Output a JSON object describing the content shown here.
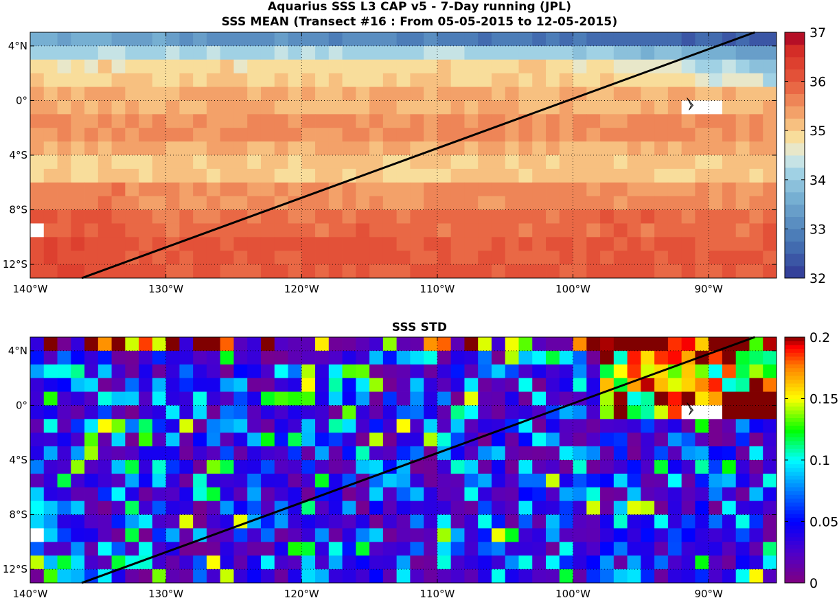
{
  "title_line1": "Aquarius SSS L3 CAP v5 - 7-Day running (JPL)",
  "title_line2": "SSS MEAN (Transect #16 : From 05-05-2015 to 12-05-2015)",
  "title_bottom": "SSS STD",
  "chart_data": [
    {
      "type": "heatmap",
      "title": "SSS MEAN (Transect #16 : From 05-05-2015 to 12-05-2015)",
      "xlim": [
        -140,
        -85
      ],
      "ylim": [
        -13,
        5
      ],
      "x_ticks": [
        -140,
        -130,
        -120,
        -110,
        -100,
        -90
      ],
      "x_tick_labels": [
        "140°W",
        "130°W",
        "120°W",
        "110°W",
        "100°W",
        "90°W"
      ],
      "y_ticks": [
        4,
        0,
        -4,
        -8,
        -12
      ],
      "y_tick_labels": [
        "4°N",
        "0°",
        "4°S",
        "8°S",
        "12°S"
      ],
      "grid": true,
      "colorbar": {
        "range": [
          32,
          37
        ],
        "ticks": [
          32,
          33,
          34,
          35,
          36,
          37
        ],
        "tick_labels": [
          "32",
          "33",
          "34",
          "35",
          "36",
          "37"
        ],
        "levels": 20
      },
      "field_description": "Low salinity (32-34.5) band along 2-5N, freshest near 90-85W; ~35-35.5 across 1S-7S; high salinity (~36) south of 8S",
      "transect": {
        "from": [
          -136.2,
          -13
        ],
        "to": [
          -86.6,
          5
        ],
        "color": "#000000"
      }
    },
    {
      "type": "heatmap",
      "title": "SSS STD",
      "xlim": [
        -140,
        -85
      ],
      "ylim": [
        -13,
        5
      ],
      "x_ticks": [
        -140,
        -130,
        -120,
        -110,
        -100,
        -90
      ],
      "x_tick_labels": [
        "140°W",
        "130°W",
        "120°W",
        "110°W",
        "100°W",
        "90°W"
      ],
      "y_ticks": [
        4,
        0,
        -4,
        -8,
        -12
      ],
      "y_tick_labels": [
        "4°N",
        "0°",
        "4°S",
        "8°S",
        "12°S"
      ],
      "grid": true,
      "colorbar": {
        "range": [
          0,
          0.2
        ],
        "ticks": [
          0,
          0.05,
          0.1,
          0.15,
          0.2
        ],
        "tick_labels": [
          "0",
          "0.05",
          "0.1",
          "0.15",
          "0.2"
        ]
      },
      "field_description": "Mostly low variability (0-0.05); high values (0.15-0.2+) along the north edge and in the eastern equatorial region east of 98W",
      "transect": {
        "from": [
          -136.2,
          -13
        ],
        "to": [
          -86.6,
          5
        ],
        "color": "#000000"
      }
    }
  ]
}
